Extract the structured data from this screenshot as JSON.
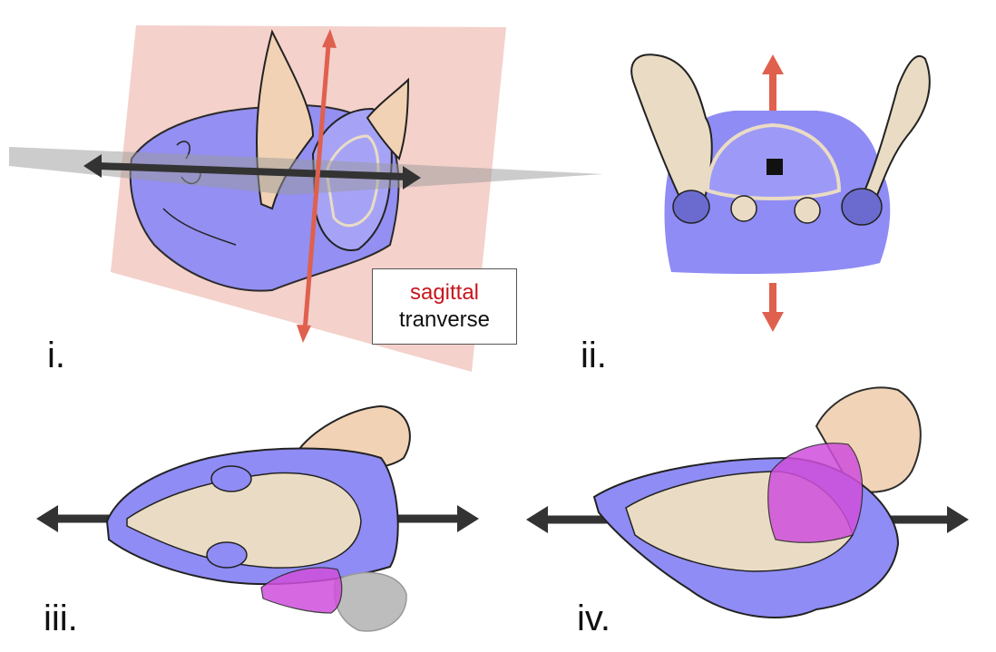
{
  "figure": {
    "panels": [
      {
        "id": "i",
        "label": "i.",
        "view": "oblique view with sagittal and transverse planes"
      },
      {
        "id": "ii",
        "label": "ii.",
        "view": "coronal section"
      },
      {
        "id": "iii",
        "label": "iii.",
        "view": "dorsal view"
      },
      {
        "id": "iv",
        "label": "iv.",
        "view": "lateral view"
      }
    ],
    "legend": {
      "sagittal": "sagittal",
      "transverse": "tranverse"
    },
    "colors": {
      "sagittal_plane": "#f2c9c2",
      "sagittal_arrow": "#e0604e",
      "transverse_plane": "#9a9a9a",
      "transverse_arrow": "#333333",
      "head_tissue": "#8f8cf5",
      "skull_bone": "#eadcc4",
      "ear_skin": "#f1d2b4",
      "muscle_highlight": "#d04fdc"
    }
  }
}
